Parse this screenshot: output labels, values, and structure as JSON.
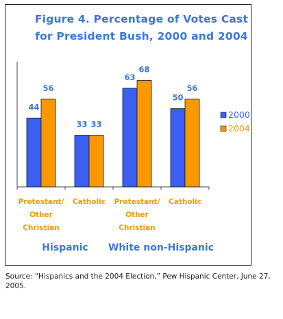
{
  "chart_data": {
    "type": "bar",
    "title": "Figure 4. Percentage of Votes Cast for President Bush, 2000 and 2004",
    "title_lines": [
      "Figure 4. Percentage of Votes Cast",
      "for President Bush, 2000 and 2004"
    ],
    "categories": [
      "Protestant/ Other Christian",
      "Catholic",
      "Protestant/ Other Christian",
      "Catholic"
    ],
    "category_lines": [
      [
        "Protestant/",
        "Other",
        "Christian"
      ],
      [
        "Catholic"
      ],
      [
        "Protestant/",
        "Other",
        "Christian"
      ],
      [
        "Catholic"
      ]
    ],
    "groups": [
      {
        "label": "Hispanic",
        "categories": [
          0,
          1
        ]
      },
      {
        "label": "White non-Hispanic",
        "categories": [
          2,
          3
        ]
      }
    ],
    "series": [
      {
        "name": "2000",
        "values": [
          44,
          33,
          63,
          50
        ],
        "color": "#3a5ff2"
      },
      {
        "name": "2004",
        "values": [
          56,
          33,
          68,
          56
        ],
        "color": "#fb9800"
      }
    ],
    "xlabel": "",
    "ylabel": "",
    "ylim": [
      0,
      80
    ],
    "grid": false,
    "legend": "right",
    "data_labels": true,
    "colors": {
      "title": "#3a78d8",
      "category_labels": "#f59a00",
      "group_labels": "#3a78d8",
      "data_labels": "#3a78d8",
      "axis": "#444444"
    }
  },
  "source_note": "Source: “Hispanics and the 2004 Election,” Pew Hispanic Center, June 27, 2005."
}
